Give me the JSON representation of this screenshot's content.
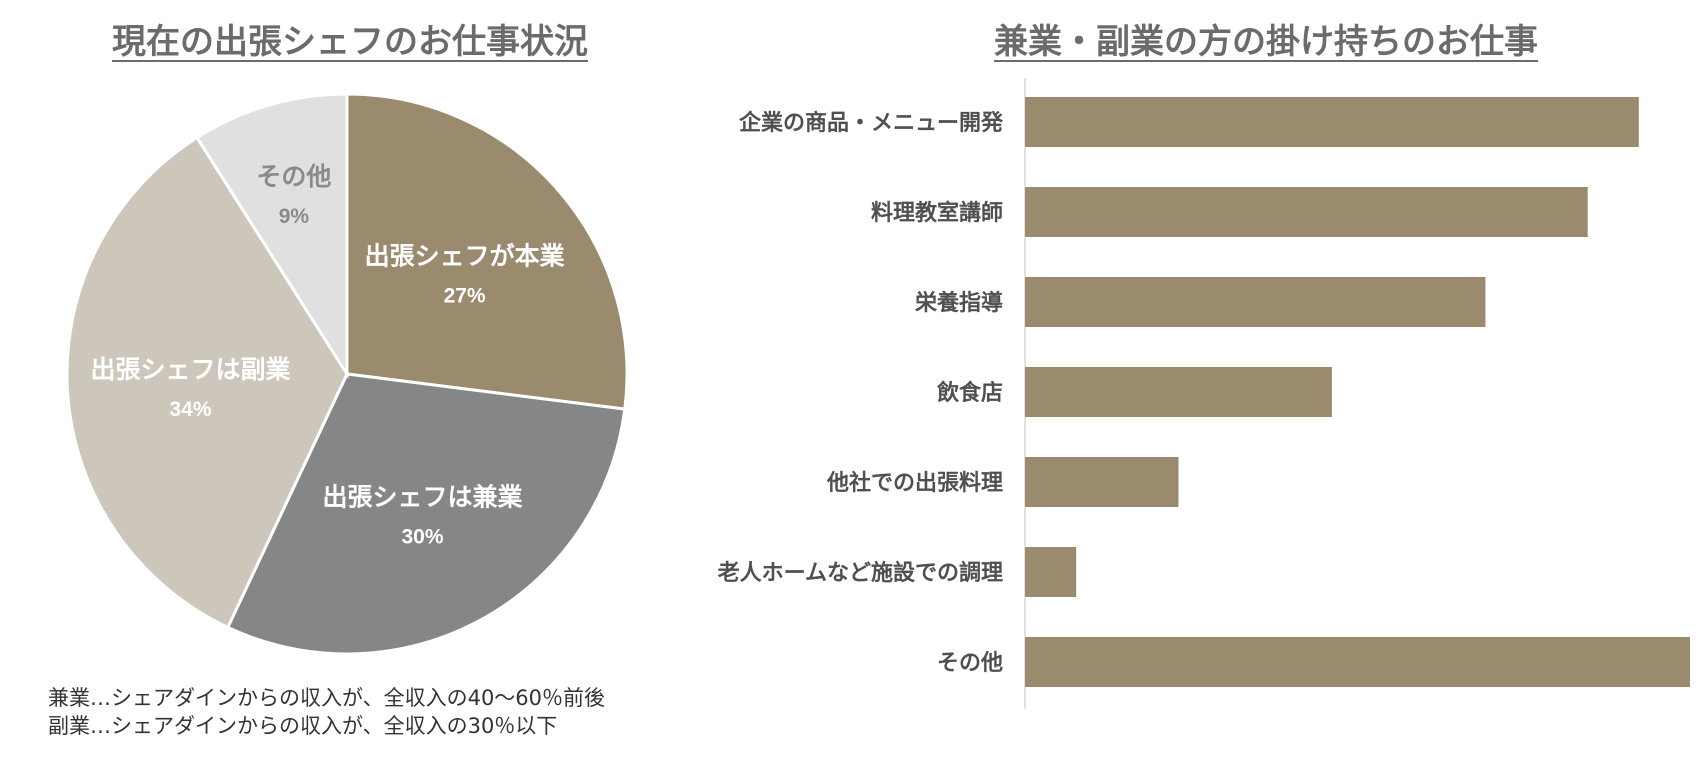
{
  "chart_data": [
    {
      "type": "pie",
      "title": "現在の出張シェフのお仕事状況",
      "slices": [
        {
          "name": "出張シェフが本業",
          "value": 27,
          "label": "27%",
          "color": "#9a8a6e",
          "text_color": "#ffffff"
        },
        {
          "name": "出張シェフは兼業",
          "value": 30,
          "label": "30%",
          "color": "#858687",
          "text_color": "#ffffff"
        },
        {
          "name": "出張シェフは副業",
          "value": 34,
          "label": "34%",
          "color": "#cdc6bb",
          "text_color": "#ffffff"
        },
        {
          "name": "その他",
          "value": 9,
          "label": "9%",
          "color": "#e0e0e0",
          "text_color": "#8a8a8a"
        }
      ],
      "notes": [
        "兼業…シェアダインからの収入が、全収入の40～60％前後",
        "副業…シェアダインからの収入が、全収入の30％以下"
      ]
    },
    {
      "type": "bar",
      "orientation": "horizontal",
      "title": "兼業・副業の方の掛け持ちのお仕事",
      "categories": [
        "企業の商品・メニュー開発",
        "料理教室講師",
        "栄養指導",
        "飲食店",
        "他社での出張料理",
        "老人ホームなど施設での調理",
        "その他"
      ],
      "values": [
        12,
        11,
        9,
        6,
        3,
        1,
        13
      ],
      "color": "#9a8a6e",
      "xlim": [
        0,
        13
      ]
    }
  ]
}
